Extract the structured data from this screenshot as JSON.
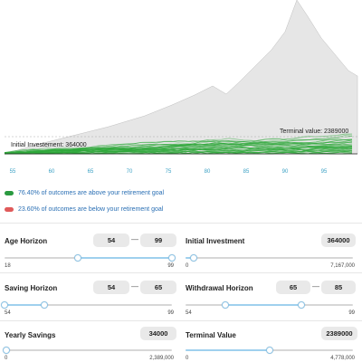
{
  "chart": {
    "x_ticks": [
      "55",
      "60",
      "65",
      "70",
      "75",
      "80",
      "85",
      "90",
      "95"
    ],
    "initial_label": "Initial Investement: 364000",
    "terminal_label": "Terminal value: 2389000",
    "band_color": "#e6e6e6",
    "line_color": "#2ea83a"
  },
  "chart_data": {
    "type": "line",
    "x_ticks": [
      55,
      60,
      65,
      70,
      75,
      80,
      85,
      90,
      95
    ],
    "annotations": [
      "Initial Investement: 364000",
      "Terminal value: 2389000"
    ]
  },
  "legend": [
    {
      "color": "#2a9a40",
      "label": "76.40% of outcomes are above your retirement goal"
    },
    {
      "color": "#e05a5a",
      "label": "23.60% of outcomes are below your retirement goal"
    }
  ],
  "controls": {
    "age_horizon": {
      "title": "Age Horizon",
      "low": "54",
      "high": "99",
      "min": "18",
      "max": "99",
      "low_frac": 0.44,
      "high_frac": 1.0
    },
    "initial_investment": {
      "title": "Initial Investment",
      "value": "364000",
      "min": "0",
      "max": "7,167,000",
      "frac": 0.05
    },
    "saving_horizon": {
      "title": "Saving Horizon",
      "low": "54",
      "high": "65",
      "min": "54",
      "max": "99",
      "low_frac": 0.0,
      "high_frac": 0.24
    },
    "withdrawal_horizon": {
      "title": "Withdrawal Horizon",
      "low": "65",
      "high": "85",
      "min": "54",
      "max": "99",
      "low_frac": 0.24,
      "high_frac": 0.69
    },
    "yearly_savings": {
      "title": "Yearly Savings",
      "value": "34000",
      "min": "0",
      "max": "2,389,000",
      "frac": 0.01
    },
    "terminal_value": {
      "title": "Terminal Value",
      "value": "2389000",
      "min": "0",
      "max": "4,778,000",
      "frac": 0.5
    }
  }
}
